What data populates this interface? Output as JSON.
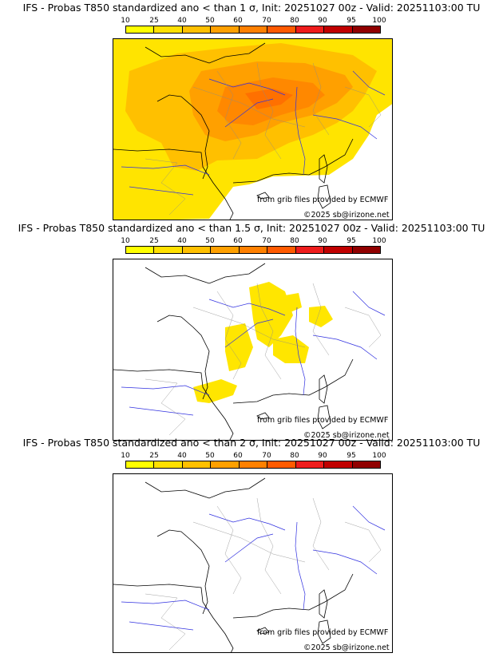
{
  "colorbar": {
    "ticks": [
      "10",
      "25",
      "40",
      "50",
      "60",
      "70",
      "80",
      "90",
      "95",
      "100"
    ],
    "colors": [
      "#ffff00",
      "#ffe000",
      "#ffc000",
      "#ffa000",
      "#ff8000",
      "#ff5a00",
      "#ee1c1c",
      "#c00000",
      "#900000",
      "#5a0000"
    ]
  },
  "credits": {
    "source": "from grib files provided by ECMWF",
    "copyright": "©2025 sb@irizone.net"
  },
  "panels": [
    {
      "title": "IFS - Probas T850  standardized ano < than 1 σ, Init: 20251027 00z - Valid: 20251103:00 TU",
      "coverage": "widespread",
      "max_probability_class": "70"
    },
    {
      "title": "IFS - Probas T850  standardized ano < than 1.5 σ, Init: 20251027 00z - Valid: 20251103:00 TU",
      "coverage": "scattered",
      "max_probability_class": "25"
    },
    {
      "title": "IFS - Probas T850  standardized ano < than 2 σ, Init: 20251027 00z - Valid: 20251103:00 TU",
      "coverage": "none",
      "max_probability_class": "10"
    }
  ]
}
